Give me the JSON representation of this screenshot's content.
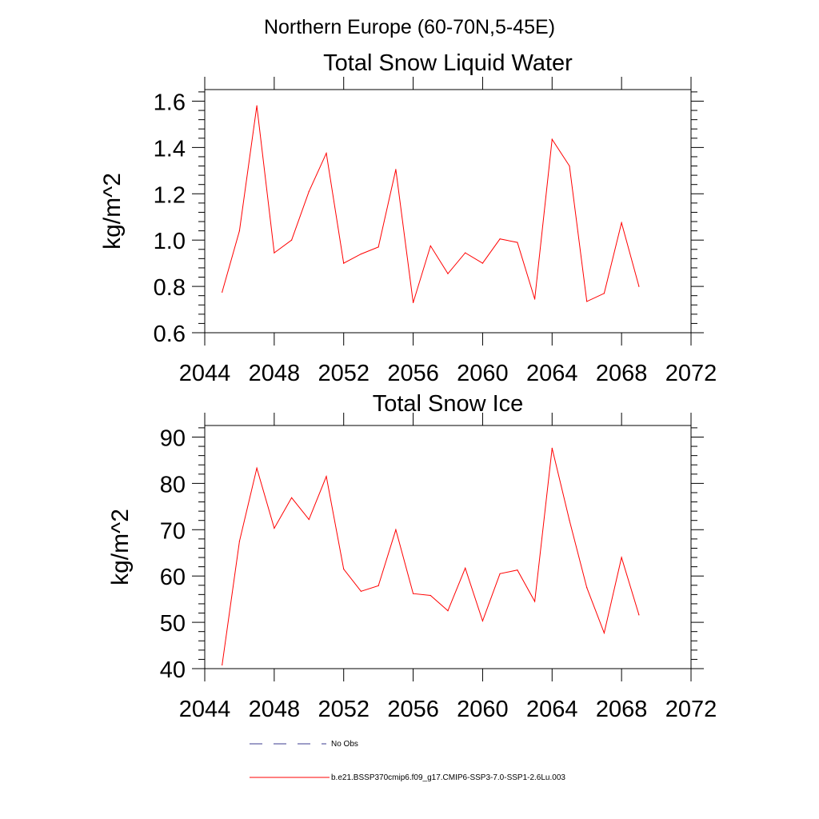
{
  "figure": {
    "suptitle": "Northern Europe (60-70N,5-45E)"
  },
  "chart_data": [
    {
      "type": "line",
      "title": "Total Snow Liquid Water",
      "xlabel": "",
      "ylabel": "kg/m^2",
      "xlim": [
        2044,
        2072
      ],
      "ylim": [
        0.6,
        1.65
      ],
      "xticks": [
        2044,
        2048,
        2052,
        2056,
        2060,
        2064,
        2068,
        2072
      ],
      "xtick_labels": [
        "2044",
        "2048",
        "2052",
        "2056",
        "2060",
        "2064",
        "2068",
        "2072"
      ],
      "yticks": [
        0.6,
        0.8,
        1.0,
        1.2,
        1.4,
        1.6
      ],
      "ytick_labels": [
        "0.6",
        "0.8",
        "1.0",
        "1.2",
        "1.4",
        "1.6"
      ],
      "grid": false,
      "x": [
        2045,
        2046,
        2047,
        2048,
        2049,
        2050,
        2051,
        2052,
        2053,
        2054,
        2055,
        2056,
        2057,
        2058,
        2059,
        2060,
        2061,
        2062,
        2063,
        2064,
        2065,
        2066,
        2067,
        2068,
        2069
      ],
      "series": [
        {
          "name": "b.e21.BSSP370cmip6.f09_g17.CMIP6-SSP3-7.0-SSP1-2.6Lu.003",
          "color": "#ff0000",
          "values": [
            0.775,
            1.04,
            1.58,
            0.945,
            1.0,
            1.21,
            1.375,
            0.9,
            0.94,
            0.97,
            1.305,
            0.73,
            0.975,
            0.855,
            0.945,
            0.9,
            1.005,
            0.99,
            0.745,
            1.435,
            1.32,
            0.735,
            0.77,
            1.075,
            0.8
          ]
        }
      ]
    },
    {
      "type": "line",
      "title": "Total Snow Ice",
      "xlabel": "",
      "ylabel": "kg/m^2",
      "xlim": [
        2044,
        2072
      ],
      "ylim": [
        40,
        92.5
      ],
      "xticks": [
        2044,
        2048,
        2052,
        2056,
        2060,
        2064,
        2068,
        2072
      ],
      "xtick_labels": [
        "2044",
        "2048",
        "2052",
        "2056",
        "2060",
        "2064",
        "2068",
        "2072"
      ],
      "yticks": [
        40,
        50,
        60,
        70,
        80,
        90
      ],
      "ytick_labels": [
        "40",
        "50",
        "60",
        "70",
        "80",
        "90"
      ],
      "grid": false,
      "x": [
        2045,
        2046,
        2047,
        2048,
        2049,
        2050,
        2051,
        2052,
        2053,
        2054,
        2055,
        2056,
        2057,
        2058,
        2059,
        2060,
        2061,
        2062,
        2063,
        2064,
        2065,
        2066,
        2067,
        2068,
        2069
      ],
      "series": [
        {
          "name": "b.e21.BSSP370cmip6.f09_g17.CMIP6-SSP3-7.0-SSP1-2.6Lu.003",
          "color": "#ff0000",
          "values": [
            40.8,
            67.5,
            83.3,
            70.3,
            76.9,
            72.2,
            81.5,
            61.5,
            56.7,
            57.9,
            70.0,
            56.2,
            55.8,
            52.5,
            61.7,
            50.3,
            60.5,
            61.3,
            54.5,
            87.6,
            72.0,
            57.5,
            47.7,
            64.0,
            51.6
          ]
        }
      ]
    }
  ],
  "legend": {
    "placement": "bottom",
    "entries": [
      {
        "label": "No Obs",
        "color": "#3b3b8f",
        "style": "dashed"
      },
      {
        "label": "b.e21.BSSP370cmip6.f09_g17.CMIP6-SSP3-7.0-SSP1-2.6Lu.003",
        "color": "#ff0000",
        "style": "solid"
      }
    ]
  }
}
